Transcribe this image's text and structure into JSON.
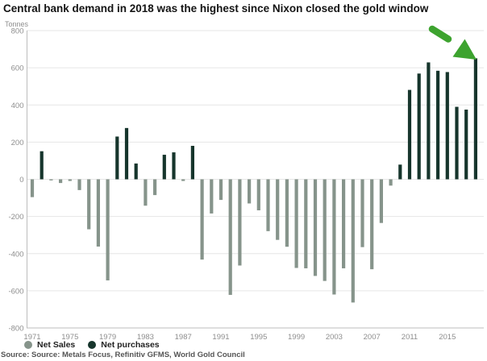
{
  "chart_data": {
    "type": "bar",
    "title": "Central bank demand in 2018 was the highest since Nixon closed the gold window",
    "ylabel": "Tonnes",
    "ylim": [
      -800,
      800
    ],
    "yticks": [
      800,
      600,
      400,
      200,
      0,
      -200,
      -400,
      -600,
      -800
    ],
    "xticks": [
      1971,
      1975,
      1979,
      1983,
      1987,
      1991,
      1995,
      1999,
      2003,
      2007,
      2011,
      2015
    ],
    "x": [
      1971,
      1972,
      1973,
      1974,
      1975,
      1976,
      1977,
      1978,
      1979,
      1980,
      1981,
      1982,
      1983,
      1984,
      1985,
      1986,
      1987,
      1988,
      1989,
      1990,
      1991,
      1992,
      1993,
      1994,
      1995,
      1996,
      1997,
      1998,
      1999,
      2000,
      2001,
      2002,
      2003,
      2004,
      2005,
      2006,
      2007,
      2008,
      2009,
      2010,
      2011,
      2012,
      2013,
      2014,
      2015,
      2016,
      2017,
      2018
    ],
    "values": [
      -96,
      151,
      -6,
      -20,
      -9,
      -58,
      -269,
      -362,
      -544,
      230,
      276,
      85,
      -142,
      -85,
      132,
      145,
      -9,
      180,
      -432,
      -184,
      -111,
      -622,
      -464,
      -130,
      -167,
      -279,
      -326,
      -363,
      -477,
      -479,
      -520,
      -547,
      -620,
      -479,
      -663,
      -365,
      -484,
      -235,
      -34,
      79,
      481,
      569,
      629,
      584,
      577,
      390,
      375,
      651
    ],
    "series_rule": {
      "negative_series": "Net Sales",
      "positive_series": "Net purchases"
    },
    "legend": [
      {
        "label": "Net Sales",
        "color": "#86948b"
      },
      {
        "label": "Net purchases",
        "color": "#16352c"
      }
    ],
    "grid": "horizontal",
    "legend_position": "bottom-left",
    "source": "Source: Source: Metals Focus, Refinitiv GFMS, World Gold Council",
    "annotation": {
      "type": "arrow",
      "target_year": 2018,
      "description": "hand-drawn green arrow pointing at 2018 bar",
      "color": "#3da32f"
    }
  }
}
